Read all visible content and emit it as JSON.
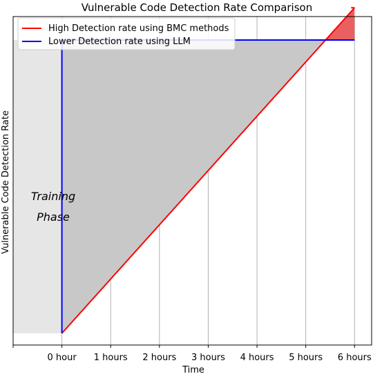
{
  "chart_data": {
    "type": "line",
    "title": "Vulnerable Code Detection Rate Comparison",
    "xlabel": "Time",
    "ylabel": "Vulnerable Code Detection Rate",
    "x_ticks": [
      "",
      "0 hour",
      "1 hours",
      "2 hours",
      "3 hours",
      "4 hours",
      "5 hours",
      "6 hours"
    ],
    "xlim": [
      -1.0,
      6.35
    ],
    "ylim": [
      -0.04,
      1.08
    ],
    "grid": "vertical",
    "legend_position": "top-left",
    "series": [
      {
        "name": "High Detection rate using BMC methods",
        "color": "#ff0000",
        "x": [
          0,
          6
        ],
        "y": [
          0.0,
          1.11
        ]
      },
      {
        "name": "Lower Detection rate using LLM",
        "color": "#0000ff",
        "x": [
          0,
          0,
          6
        ],
        "y": [
          0.0,
          1.0,
          1.0
        ]
      }
    ],
    "shaded_regions": [
      {
        "label": "training",
        "x": [
          -1,
          0
        ],
        "y": [
          0,
          1.0
        ],
        "color": "#e6e6e6"
      },
      {
        "label": "llm-advantage",
        "color": "#c8c8c8"
      },
      {
        "label": "bmc-advantage",
        "color": "#e86060"
      }
    ],
    "annotations": [
      "Training",
      "Phase"
    ]
  }
}
